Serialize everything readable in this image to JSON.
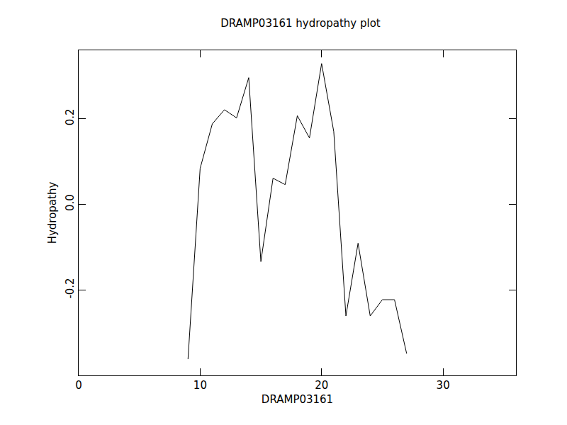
{
  "chart_data": {
    "type": "line",
    "title": "DRAMP03161 hydropathy plot",
    "x_label": "DRAMP03161",
    "y_label": "Hydropathy",
    "x": [
      9,
      10,
      11,
      12,
      13,
      14,
      15,
      16,
      17,
      18,
      19,
      20,
      21,
      22,
      23,
      24,
      25,
      26,
      27
    ],
    "values": [
      -0.362,
      0.084,
      0.188,
      0.221,
      0.202,
      0.296,
      -0.134,
      0.061,
      0.046,
      0.207,
      0.155,
      0.329,
      0.17,
      -0.261,
      -0.091,
      -0.261,
      -0.223,
      -0.223,
      -0.349
    ],
    "color": "#000000",
    "xlim": [
      0,
      36
    ],
    "xticks": [
      0,
      10,
      20,
      30
    ],
    "ylim": [
      -0.4,
      0.36
    ],
    "yticks": [
      -0.2,
      {
        "value": 0,
        "label": "0.0"
      },
      0.2
    ],
    "grid": false
  }
}
